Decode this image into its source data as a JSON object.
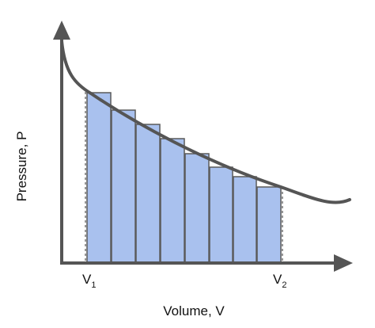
{
  "axes": {
    "x_label": "Volume, V",
    "y_label": "Pressure, P"
  },
  "markers": [
    {
      "main": "V",
      "sub": "1"
    },
    {
      "main": "V",
      "sub": "2"
    }
  ]
}
